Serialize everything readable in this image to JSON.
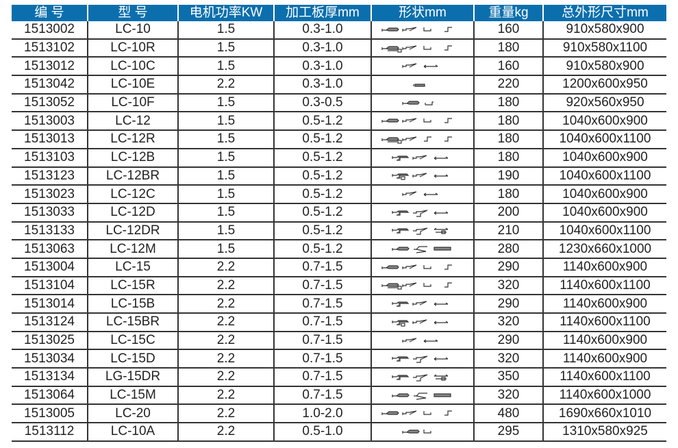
{
  "header": [
    "编 号",
    "型 号",
    "电机功率KW",
    "加工板厚mm",
    "形状mm",
    "重量kg",
    "总外形尺寸mm"
  ],
  "rows": [
    {
      "code": "1513002",
      "model": "LC-10",
      "power": "1.5",
      "thickness": "0.3-1.0",
      "shapes": [
        "A",
        "B",
        "C",
        "D"
      ],
      "weight": "160",
      "size": "910x580x900"
    },
    {
      "code": "1513102",
      "model": "LC-10R",
      "power": "1.5",
      "thickness": "0.3-1.0",
      "shapes": [
        "AR",
        "B",
        "C",
        "D"
      ],
      "weight": "180",
      "size": "910x580x1100"
    },
    {
      "code": "1513012",
      "model": "LC-10C",
      "power": "1.5",
      "thickness": "0.3-1.0",
      "shapes": [
        "B",
        "E"
      ],
      "weight": "160",
      "size": "910x580x900"
    },
    {
      "code": "1513042",
      "model": "LC-10E",
      "power": "2.2",
      "thickness": "0.3-1.0",
      "shapes": [
        "H"
      ],
      "weight": "220",
      "size": "1200x600x950"
    },
    {
      "code": "1513052",
      "model": "LC-10F",
      "power": "1.5",
      "thickness": "0.3-0.5",
      "shapes": [
        "A",
        "I"
      ],
      "weight": "180",
      "size": "920x560x950"
    },
    {
      "code": "1513003",
      "model": "LC-12",
      "power": "1.5",
      "thickness": "0.5-1.2",
      "shapes": [
        "A",
        "B",
        "C",
        "D"
      ],
      "weight": "180",
      "size": "1040x600x900"
    },
    {
      "code": "1513013",
      "model": "LC-12R",
      "power": "1.5",
      "thickness": "0.5-1.2",
      "shapes": [
        "AR",
        "B",
        "D",
        "D"
      ],
      "weight": "180",
      "size": "1040x600x1100"
    },
    {
      "code": "1513103",
      "model": "LC-12B",
      "power": "1.5",
      "thickness": "0.5-1.2",
      "shapes": [
        "F",
        "B",
        "E"
      ],
      "weight": "180",
      "size": "1040x600x900"
    },
    {
      "code": "1513123",
      "model": "LC-12BR",
      "power": "1.5",
      "thickness": "0.5-1.2",
      "shapes": [
        "FR",
        "B",
        "E"
      ],
      "weight": "190",
      "size": "1040x600x1100"
    },
    {
      "code": "1513023",
      "model": "LC-12C",
      "power": "1.5",
      "thickness": "0.5-1.2",
      "shapes": [
        "B",
        "E"
      ],
      "weight": "180",
      "size": "1040x600x900"
    },
    {
      "code": "1513033",
      "model": "LC-12D",
      "power": "1.5",
      "thickness": "0.5-1.2",
      "shapes": [
        "F",
        "F2",
        "E"
      ],
      "weight": "200",
      "size": "1040x600x900"
    },
    {
      "code": "1513133",
      "model": "LC-12DR",
      "power": "1.5",
      "thickness": "0.5-1.2",
      "shapes": [
        "F",
        "F2",
        "ER"
      ],
      "weight": "210",
      "size": "1040x600x1100"
    },
    {
      "code": "1513063",
      "model": "LC-12M",
      "power": "1.5",
      "thickness": "0.5-1.2",
      "shapes": [
        "A",
        "G",
        "L"
      ],
      "weight": "280",
      "size": "1230x660x1000"
    },
    {
      "code": "1513004",
      "model": "LC-15",
      "power": "2.2",
      "thickness": "0.7-1.5",
      "shapes": [
        "A",
        "B",
        "C",
        "D"
      ],
      "weight": "290",
      "size": "1140x600x900"
    },
    {
      "code": "1513104",
      "model": "LC-15R",
      "power": "2.2",
      "thickness": "0.7-1.5",
      "shapes": [
        "AR",
        "B",
        "C",
        "D"
      ],
      "weight": "320",
      "size": "1140x600x1100"
    },
    {
      "code": "1513014",
      "model": "LC-15B",
      "power": "2.2",
      "thickness": "0.7-1.5",
      "shapes": [
        "F",
        "B",
        "E"
      ],
      "weight": "290",
      "size": "1140x600x900"
    },
    {
      "code": "1513124",
      "model": "LC-15BR",
      "power": "2.2",
      "thickness": "0.7-1.5",
      "shapes": [
        "FR",
        "B",
        "E"
      ],
      "weight": "320",
      "size": "1140x600x1100"
    },
    {
      "code": "1513025",
      "model": "LC-15C",
      "power": "2.2",
      "thickness": "0.7-1.5",
      "shapes": [
        "B",
        "E"
      ],
      "weight": "290",
      "size": "1140x600x900"
    },
    {
      "code": "1513034",
      "model": "LC-15D",
      "power": "2.2",
      "thickness": "0.7-1.5",
      "shapes": [
        "F",
        "F2",
        "E"
      ],
      "weight": "320",
      "size": "1140x600x900"
    },
    {
      "code": "1513134",
      "model": "LG-15DR",
      "power": "2.2",
      "thickness": "0.7-1.5",
      "shapes": [
        "F",
        "F2",
        "ER"
      ],
      "weight": "350",
      "size": "1140x600x1100"
    },
    {
      "code": "1513064",
      "model": "LC-15M",
      "power": "2.2",
      "thickness": "0.7-1.5",
      "shapes": [
        "A",
        "G",
        "L"
      ],
      "weight": "320",
      "size": "1140x600x1000"
    },
    {
      "code": "1513005",
      "model": "LC-20",
      "power": "2.2",
      "thickness": "1.0-2.0",
      "shapes": [
        "A",
        "B",
        "C",
        "D"
      ],
      "weight": "480",
      "size": "1690x660x1010"
    },
    {
      "code": "1513112",
      "model": "LC-10A",
      "power": "2.2",
      "thickness": "0.5-1.0",
      "shapes": [
        "A",
        "C"
      ],
      "weight": "295",
      "size": "1310x580x925"
    }
  ],
  "colors": {
    "header_bg": "#0b6fad",
    "header_text": "#ffffff",
    "grid": "#333333"
  }
}
